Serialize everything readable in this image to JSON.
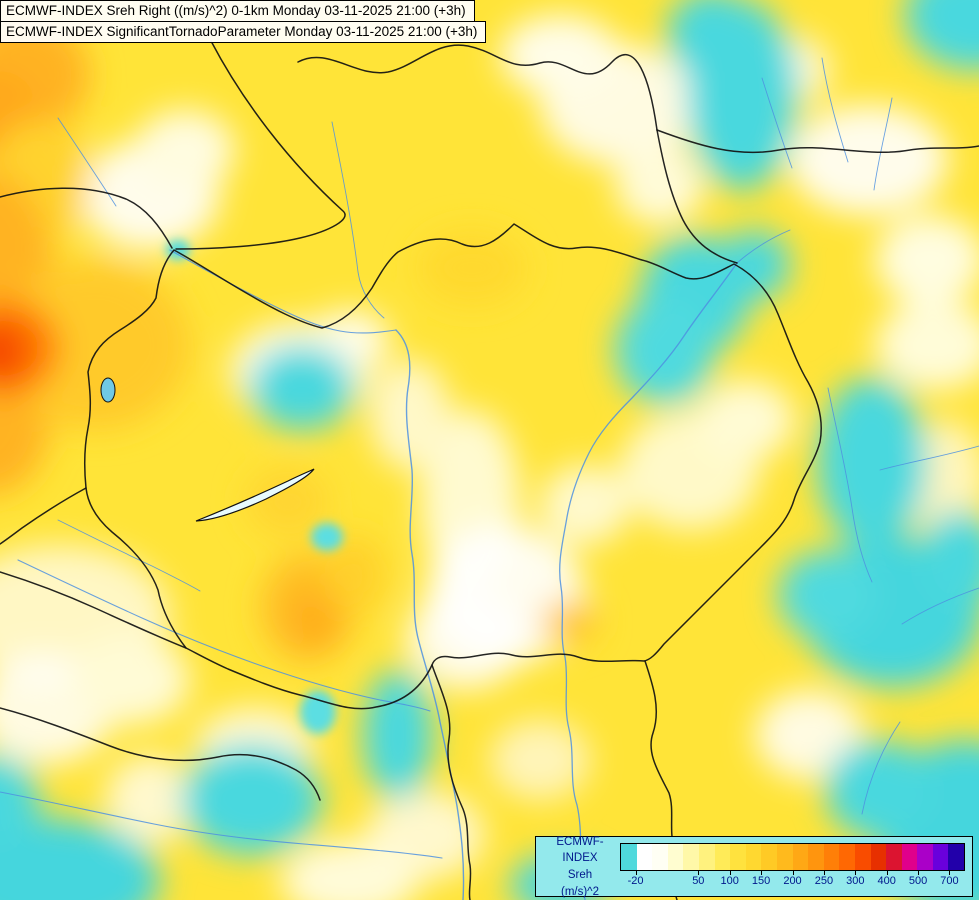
{
  "header": {
    "title_line1": "ECMWF-INDEX Sreh Right ((m/s)^2) 0-1km Monday 03-11-2025 21:00 (+3h)",
    "title_line2": "ECMWF-INDEX SignificantTornadoParameter Monday 03-11-2025 21:00 (+3h)"
  },
  "legend": {
    "title": "ECMWF-INDEX",
    "parameter": "Sreh",
    "units": "(m/s)^2",
    "panel_bg": "#93E9EC",
    "label_color": "#00188C",
    "cells": [
      "#4FD9DC",
      "#FFFFFF",
      "#FFFFF4",
      "#FFFDD0",
      "#FFF8A8",
      "#FFF27E",
      "#FFEB58",
      "#FFE23E",
      "#FFD830",
      "#FFCA25",
      "#FFBA1D",
      "#FFA815",
      "#FF950E",
      "#FF7F08",
      "#FF6803",
      "#F94C00",
      "#E73000",
      "#DC1430",
      "#E0008C",
      "#AA00C8",
      "#6A00DC",
      "#2200AA"
    ],
    "ticks": [
      {
        "label": "-20",
        "pos": 4.5
      },
      {
        "label": "50",
        "pos": 22.7
      },
      {
        "label": "100",
        "pos": 31.8
      },
      {
        "label": "150",
        "pos": 40.9
      },
      {
        "label": "200",
        "pos": 50
      },
      {
        "label": "250",
        "pos": 59.1
      },
      {
        "label": "300",
        "pos": 68.2
      },
      {
        "label": "400",
        "pos": 77.3
      },
      {
        "label": "500",
        "pos": 86.4
      },
      {
        "label": "700",
        "pos": 95.5
      }
    ]
  },
  "map": {
    "base_color": "#FFE438",
    "palette": {
      "cyan": "#4AD8DE",
      "white": "#FFFFFF",
      "pale_yellow": "#FFF8A8",
      "yellow": "#FFE438",
      "gold": "#FFD92F",
      "orange": "#FFB322",
      "red_orange": "#FF7A06",
      "red": "#F64A00"
    },
    "border_color": "#111111",
    "river_color": "#4D90E0"
  }
}
